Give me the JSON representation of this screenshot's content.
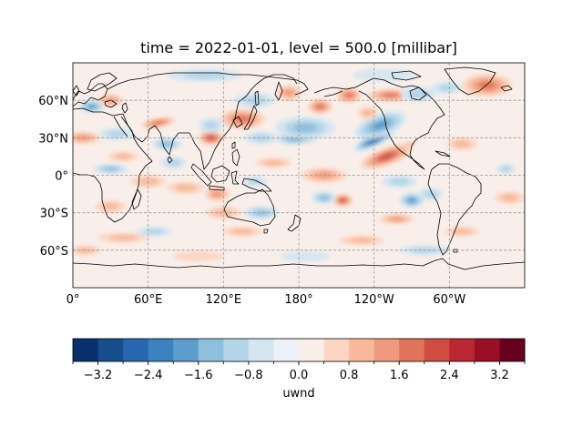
{
  "title": "time = 2022-01-01, level = 500.0 [millibar]",
  "map": {
    "projection": "PlateCarree",
    "central_longitude": 180,
    "extent_lon": [
      0,
      360
    ],
    "extent_lat": [
      -90,
      90
    ],
    "gridlines": "dashed gray",
    "coastlines": true,
    "lat_ticks": [
      {
        "value": 60,
        "label": "60°N"
      },
      {
        "value": 30,
        "label": "30°N"
      },
      {
        "value": 0,
        "label": "0°"
      },
      {
        "value": -30,
        "label": "30°S"
      },
      {
        "value": -60,
        "label": "60°S"
      }
    ],
    "lon_ticks": [
      {
        "value": 0,
        "label": "0°"
      },
      {
        "value": 60,
        "label": "60°E"
      },
      {
        "value": 120,
        "label": "120°E"
      },
      {
        "value": 180,
        "label": "180°"
      },
      {
        "value": 240,
        "label": "120°W"
      },
      {
        "value": 300,
        "label": "60°W"
      }
    ]
  },
  "colorbar": {
    "label": "uwnd",
    "cmap": "RdBu_r",
    "range": [
      -3.6,
      3.6
    ],
    "levels": [
      -3.6,
      -3.2,
      -2.8,
      -2.4,
      -2.0,
      -1.6,
      -1.2,
      -0.8,
      -0.4,
      0.0,
      0.4,
      0.8,
      1.2,
      1.6,
      2.0,
      2.4,
      2.8,
      3.2,
      3.6
    ],
    "colors": [
      "#08306b",
      "#164d8c",
      "#2866b0",
      "#3b82bf",
      "#5c9dcc",
      "#8ec0dd",
      "#b4d5e8",
      "#d5e6f1",
      "#ecf2f7",
      "#faeee8",
      "#fdd6c3",
      "#f8b99b",
      "#f09a7d",
      "#e07358",
      "#ce4c40",
      "#ba2730",
      "#9a0e26",
      "#67001f"
    ],
    "tick_labels": [
      {
        "value": -3.2,
        "label": "−3.2"
      },
      {
        "value": -2.4,
        "label": "−2.4"
      },
      {
        "value": -1.6,
        "label": "−1.6"
      },
      {
        "value": -0.8,
        "label": "−0.8"
      },
      {
        "value": 0.0,
        "label": "0.0"
      },
      {
        "value": 0.8,
        "label": "0.8"
      },
      {
        "value": 1.6,
        "label": "1.6"
      },
      {
        "value": 2.4,
        "label": "2.4"
      },
      {
        "value": 3.2,
        "label": "3.2"
      }
    ]
  },
  "anomalies": [
    {
      "lon": 240,
      "lat": 28,
      "value": -2.4,
      "rx": 18,
      "ry": 5,
      "rot": -25
    },
    {
      "lon": 245,
      "lat": 40,
      "value": -1.6,
      "rx": 22,
      "ry": 9,
      "rot": -20
    },
    {
      "lon": 260,
      "lat": 20,
      "value": 3.4,
      "rx": 14,
      "ry": 4,
      "rot": -25
    },
    {
      "lon": 250,
      "lat": 15,
      "value": 2.2,
      "rx": 22,
      "ry": 7,
      "rot": -20
    },
    {
      "lon": 180,
      "lat": 30,
      "value": -2.0,
      "rx": 18,
      "ry": 5,
      "rot": -5
    },
    {
      "lon": 185,
      "lat": 38,
      "value": -1.2,
      "rx": 24,
      "ry": 9,
      "rot": 0
    },
    {
      "lon": 135,
      "lat": 45,
      "value": 1.8,
      "rx": 18,
      "ry": 8,
      "rot": 0
    },
    {
      "lon": 150,
      "lat": 30,
      "value": -1.0,
      "rx": 14,
      "ry": 5,
      "rot": 0
    },
    {
      "lon": 197,
      "lat": 55,
      "value": 1.6,
      "rx": 10,
      "ry": 6,
      "rot": 0
    },
    {
      "lon": 172,
      "lat": 66,
      "value": 1.4,
      "rx": 10,
      "ry": 6,
      "rot": 0
    },
    {
      "lon": 220,
      "lat": 64,
      "value": 1.8,
      "rx": 10,
      "ry": 6,
      "rot": 0
    },
    {
      "lon": 253,
      "lat": 64,
      "value": 1.6,
      "rx": 18,
      "ry": 5,
      "rot": 0
    },
    {
      "lon": 275,
      "lat": 65,
      "value": -1.0,
      "rx": 14,
      "ry": 6,
      "rot": 0
    },
    {
      "lon": 330,
      "lat": 72,
      "value": 1.6,
      "rx": 20,
      "ry": 9,
      "rot": 0
    },
    {
      "lon": 298,
      "lat": 70,
      "value": -0.8,
      "rx": 12,
      "ry": 5,
      "rot": 0
    },
    {
      "lon": 248,
      "lat": 80,
      "value": -0.6,
      "rx": 25,
      "ry": 5,
      "rot": 0
    },
    {
      "lon": 145,
      "lat": 60,
      "value": -0.8,
      "rx": 16,
      "ry": 6,
      "rot": 0
    },
    {
      "lon": 105,
      "lat": 80,
      "value": -0.8,
      "rx": 30,
      "ry": 5,
      "rot": 0
    },
    {
      "lon": 110,
      "lat": 30,
      "value": 2.2,
      "rx": 10,
      "ry": 6,
      "rot": 0
    },
    {
      "lon": 110,
      "lat": 40,
      "value": -1.0,
      "rx": 10,
      "ry": 6,
      "rot": 0
    },
    {
      "lon": 68,
      "lat": 42,
      "value": 1.6,
      "rx": 14,
      "ry": 4,
      "rot": -10
    },
    {
      "lon": 75,
      "lat": 25,
      "value": -1.4,
      "rx": 12,
      "ry": 5,
      "rot": 0
    },
    {
      "lon": 35,
      "lat": 33,
      "value": -1.0,
      "rx": 14,
      "ry": 5,
      "rot": 0
    },
    {
      "lon": 15,
      "lat": 55,
      "value": -1.6,
      "rx": 10,
      "ry": 5,
      "rot": 0
    },
    {
      "lon": 30,
      "lat": 60,
      "value": 1.2,
      "rx": 10,
      "ry": 5,
      "rot": 0
    },
    {
      "lon": 8,
      "lat": 30,
      "value": 1.4,
      "rx": 14,
      "ry": 5,
      "rot": 0
    },
    {
      "lon": 30,
      "lat": 5,
      "value": -1.4,
      "rx": 14,
      "ry": 4,
      "rot": 0
    },
    {
      "lon": 60,
      "lat": -5,
      "value": 1.0,
      "rx": 14,
      "ry": 5,
      "rot": 0
    },
    {
      "lon": 90,
      "lat": -10,
      "value": 1.0,
      "rx": 15,
      "ry": 5,
      "rot": 0
    },
    {
      "lon": 115,
      "lat": -15,
      "value": 1.4,
      "rx": 10,
      "ry": 6,
      "rot": 0
    },
    {
      "lon": 80,
      "lat": 10,
      "value": -0.8,
      "rx": 10,
      "ry": 5,
      "rot": 0
    },
    {
      "lon": 145,
      "lat": -5,
      "value": -1.0,
      "rx": 10,
      "ry": 4,
      "rot": 0
    },
    {
      "lon": 200,
      "lat": 0,
      "value": 1.4,
      "rx": 18,
      "ry": 6,
      "rot": 0
    },
    {
      "lon": 215,
      "lat": -20,
      "value": 2.2,
      "rx": 8,
      "ry": 5,
      "rot": 0
    },
    {
      "lon": 200,
      "lat": -18,
      "value": -1.2,
      "rx": 10,
      "ry": 5,
      "rot": 0
    },
    {
      "lon": 260,
      "lat": -5,
      "value": -0.8,
      "rx": 14,
      "ry": 5,
      "rot": 0
    },
    {
      "lon": 270,
      "lat": -20,
      "value": -1.6,
      "rx": 10,
      "ry": 6,
      "rot": 0
    },
    {
      "lon": 258,
      "lat": -35,
      "value": 1.2,
      "rx": 14,
      "ry": 4,
      "rot": 0
    },
    {
      "lon": 285,
      "lat": -15,
      "value": -0.8,
      "rx": 10,
      "ry": 5,
      "rot": 0
    },
    {
      "lon": 348,
      "lat": -18,
      "value": 0.8,
      "rx": 12,
      "ry": 5,
      "rot": 0
    },
    {
      "lon": 345,
      "lat": 5,
      "value": -0.8,
      "rx": 8,
      "ry": 4,
      "rot": 0
    },
    {
      "lon": 150,
      "lat": -30,
      "value": -1.2,
      "rx": 14,
      "ry": 5,
      "rot": 0
    },
    {
      "lon": 135,
      "lat": -45,
      "value": 1.0,
      "rx": 16,
      "ry": 4,
      "rot": 0
    },
    {
      "lon": 120,
      "lat": -30,
      "value": 0.8,
      "rx": 14,
      "ry": 5,
      "rot": 0
    },
    {
      "lon": 40,
      "lat": -50,
      "value": 0.8,
      "rx": 20,
      "ry": 4,
      "rot": 0
    },
    {
      "lon": 65,
      "lat": -45,
      "value": -0.8,
      "rx": 14,
      "ry": 4,
      "rot": 0
    },
    {
      "lon": 30,
      "lat": -25,
      "value": 1.0,
      "rx": 12,
      "ry": 5,
      "rot": 0
    },
    {
      "lon": 10,
      "lat": -60,
      "value": 1.0,
      "rx": 12,
      "ry": 4,
      "rot": 0
    },
    {
      "lon": 280,
      "lat": -60,
      "value": -0.8,
      "rx": 20,
      "ry": 4,
      "rot": 0
    },
    {
      "lon": 230,
      "lat": -52,
      "value": 0.8,
      "rx": 18,
      "ry": 4,
      "rot": 0
    },
    {
      "lon": 310,
      "lat": -45,
      "value": 0.8,
      "rx": 14,
      "ry": 4,
      "rot": 0
    },
    {
      "lon": 185,
      "lat": -65,
      "value": -0.6,
      "rx": 20,
      "ry": 4,
      "rot": 0
    },
    {
      "lon": 100,
      "lat": -65,
      "value": 0.6,
      "rx": 20,
      "ry": 4,
      "rot": 0
    },
    {
      "lon": 40,
      "lat": 15,
      "value": 0.8,
      "rx": 12,
      "ry": 4,
      "rot": 0
    },
    {
      "lon": 160,
      "lat": 10,
      "value": 0.8,
      "rx": 14,
      "ry": 4,
      "rot": 0
    },
    {
      "lon": 310,
      "lat": 25,
      "value": 0.8,
      "rx": 12,
      "ry": 5,
      "rot": 0
    },
    {
      "lon": 235,
      "lat": 50,
      "value": 0.8,
      "rx": 8,
      "ry": 5,
      "rot": 0
    }
  ]
}
